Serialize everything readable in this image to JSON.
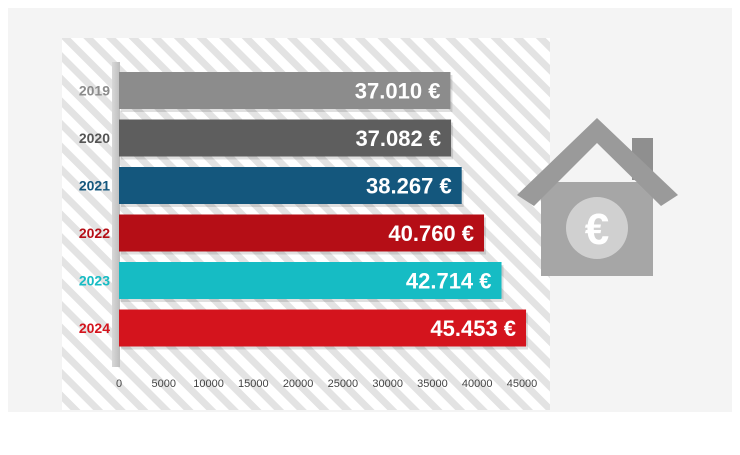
{
  "chart_data": {
    "type": "bar",
    "orientation": "horizontal",
    "title": "",
    "xlabel": "",
    "ylabel": "",
    "categories": [
      "2019",
      "2020",
      "2021",
      "2022",
      "2023",
      "2024"
    ],
    "values": [
      37010,
      37082,
      38267,
      40760,
      42714,
      45453
    ],
    "data_labels": [
      "37.010 €",
      "37.082 €",
      "38.267 €",
      "40.760 €",
      "42.714 €",
      "45.453 €"
    ],
    "bar_colors": [
      "#8c8c8c",
      "#5e5e5e",
      "#14577d",
      "#b50e16",
      "#16bcc4",
      "#d4141d"
    ],
    "category_label_colors": [
      "#8c8c8c",
      "#555555",
      "#14577d",
      "#b50e16",
      "#16bcc4",
      "#d4141d"
    ],
    "xlim": [
      0,
      45000
    ],
    "x_ticks": [
      "0",
      "5000",
      "10000",
      "15000",
      "20000",
      "25000",
      "30000",
      "35000",
      "40000",
      "45000"
    ],
    "grid": false,
    "background": "diagonal-stripes",
    "decoration_icon": "house-euro-icon",
    "icon_color": "#9a9a9a"
  }
}
